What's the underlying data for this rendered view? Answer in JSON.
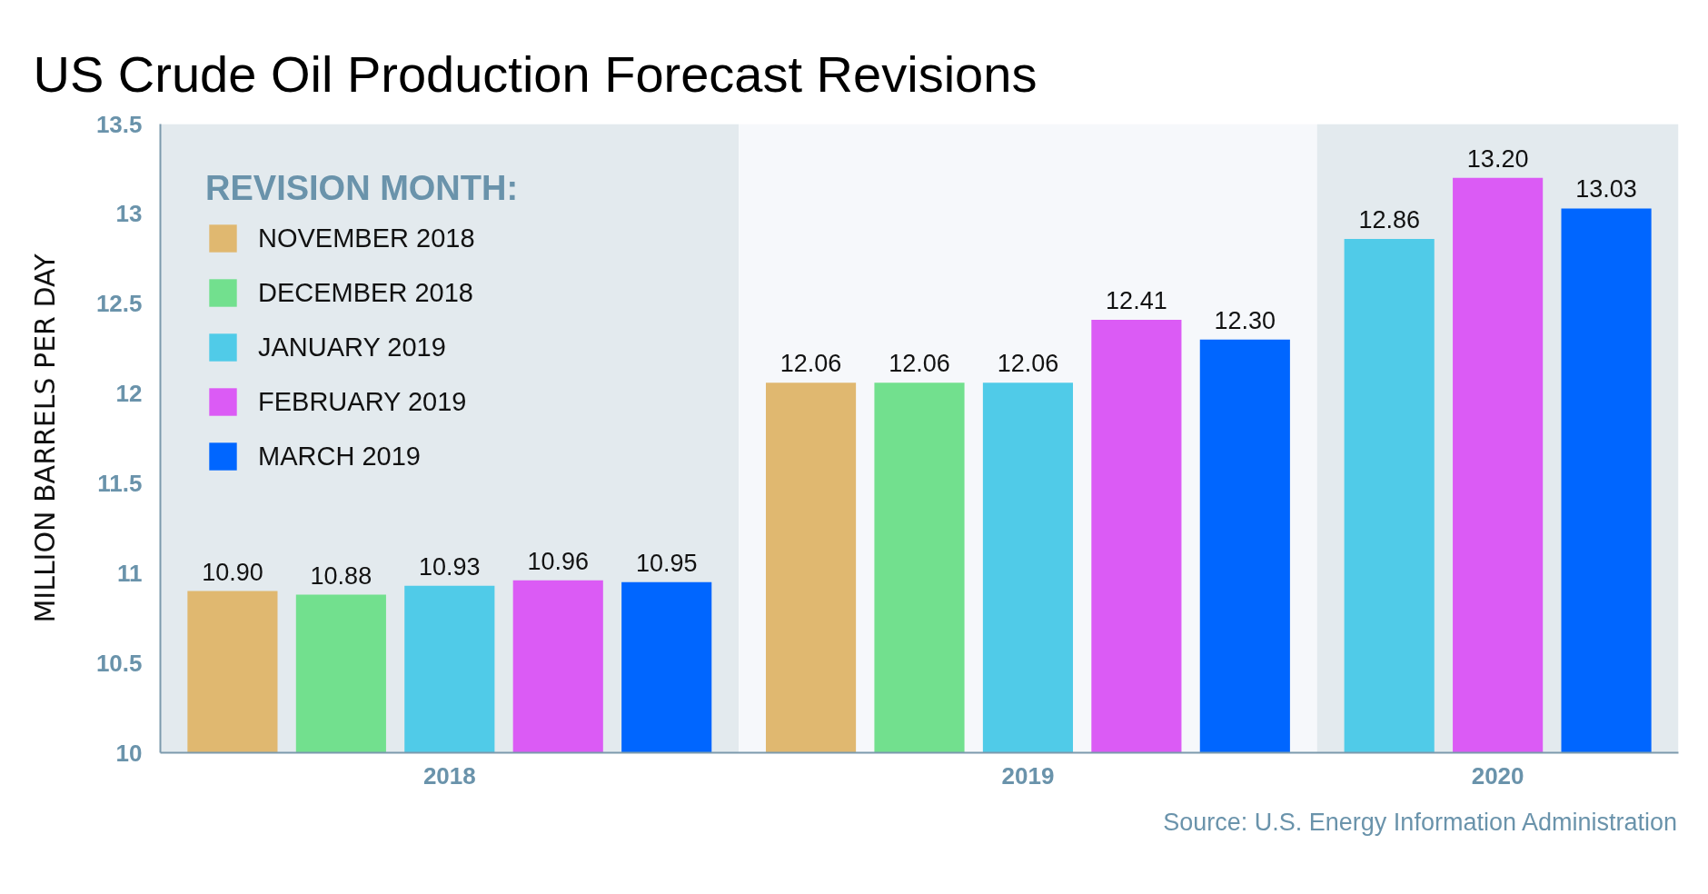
{
  "chart_data": {
    "type": "bar",
    "title": "US Crude Oil Production Forecast Revisions",
    "ylabel": "MILLION BARRELS PER DAY",
    "legend_title": "REVISION MONTH:",
    "categories": [
      "2018",
      "2019",
      "2020"
    ],
    "series": [
      {
        "name": "NOVEMBER 2018",
        "color": "#e0b870",
        "values": [
          10.9,
          12.06,
          null
        ],
        "value_labels": [
          "10.90",
          "12.06",
          null
        ]
      },
      {
        "name": "DECEMBER 2018",
        "color": "#72e08e",
        "values": [
          10.88,
          12.06,
          null
        ],
        "value_labels": [
          "10.88",
          "12.06",
          null
        ]
      },
      {
        "name": "JANUARY 2019",
        "color": "#50cbe8",
        "values": [
          10.93,
          12.06,
          12.86
        ],
        "value_labels": [
          "10.93",
          "12.06",
          "12.86"
        ]
      },
      {
        "name": "FEBRUARY 2019",
        "color": "#db5bf5",
        "values": [
          10.96,
          12.41,
          13.2
        ],
        "value_labels": [
          "10.96",
          "12.41",
          "13.20"
        ]
      },
      {
        "name": "MARCH 2019",
        "color": "#0066ff",
        "values": [
          10.95,
          12.3,
          13.03
        ],
        "value_labels": [
          "10.95",
          "12.30",
          "13.03"
        ]
      }
    ],
    "ylim": [
      10,
      13.5
    ],
    "yticks": [
      10,
      10.5,
      11,
      11.5,
      12,
      12.5,
      13,
      13.5
    ],
    "legend": "top left",
    "bands": [
      {
        "axis": "x",
        "from": "2018",
        "to": "2018",
        "color": "#e3eaee"
      },
      {
        "axis": "x",
        "from": "2019",
        "to": "2019",
        "color": "#f6f8fb"
      },
      {
        "axis": "x",
        "from": "2020",
        "to": "2020",
        "color": "#e3eaee"
      }
    ],
    "annotations": [
      "Source: U.S. Energy Information Administration"
    ]
  }
}
